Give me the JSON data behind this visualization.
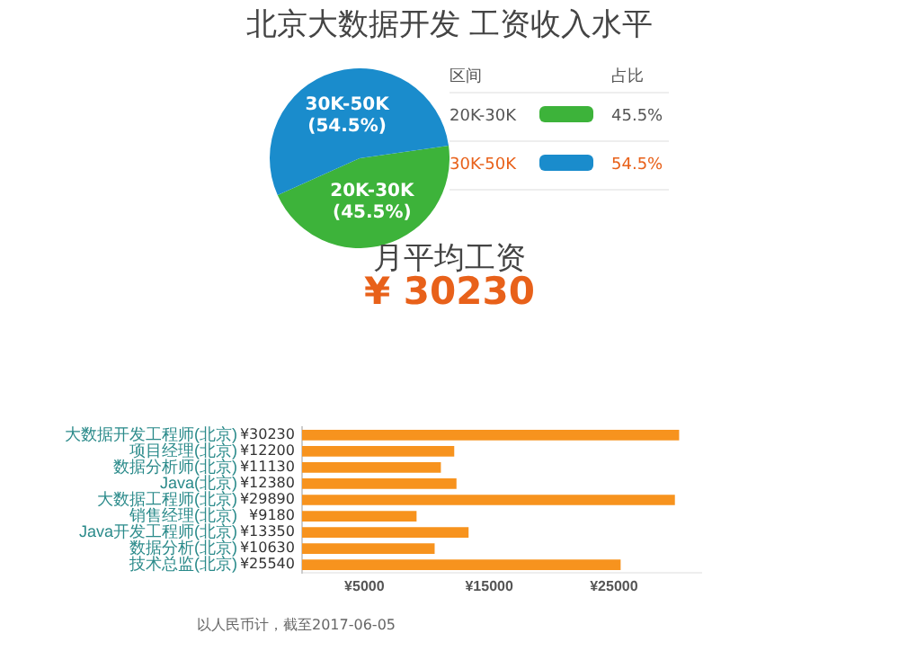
{
  "chart_data": [
    {
      "type": "pie",
      "title": "北京大数据开发 工资收入水平",
      "categories": [
        "20K-30K",
        "30K-50K"
      ],
      "values": [
        45.5,
        54.5
      ],
      "colors": [
        "#3db33a",
        "#1a8ccc"
      ],
      "value_labels": [
        "(45.5%)",
        "(54.5%)"
      ],
      "legend": "right",
      "legend_title": "区间",
      "annotations": [
        "占比",
        "45.5%",
        "54.5%"
      ]
    },
    {
      "type": "bar",
      "orientation": "horizontal",
      "title": "月平均工资",
      "subtitle": "¥ 30230",
      "categories": [
        "大数据开发工程师(北京)",
        "项目经理(北京)",
        "数据分析师(北京)",
        "Java(北京)",
        "大数据工程师(北京)",
        "销售经理(北京)",
        "Java开发工程师(北京)",
        "数据分析(北京)",
        "技术总监(北京)"
      ],
      "values": [
        30230,
        12200,
        11130,
        12380,
        29890,
        9180,
        13350,
        10630,
        25540
      ],
      "value_labels": [
        "¥30230",
        "¥12200",
        "¥11130",
        "¥12380",
        "¥29890",
        "¥9180",
        "¥13350",
        "¥10630",
        "¥25540"
      ],
      "color": "#f7931e",
      "xlim": [
        0,
        32000
      ],
      "xticks": [
        {
          "value": 5000,
          "label": "¥5000"
        },
        {
          "value": 15000,
          "label": "¥15000"
        },
        {
          "value": 25000,
          "label": "¥25000"
        }
      ],
      "grid": false,
      "legend": false,
      "annotations": [
        "以人民币计，截至2017-06-05"
      ]
    }
  ]
}
